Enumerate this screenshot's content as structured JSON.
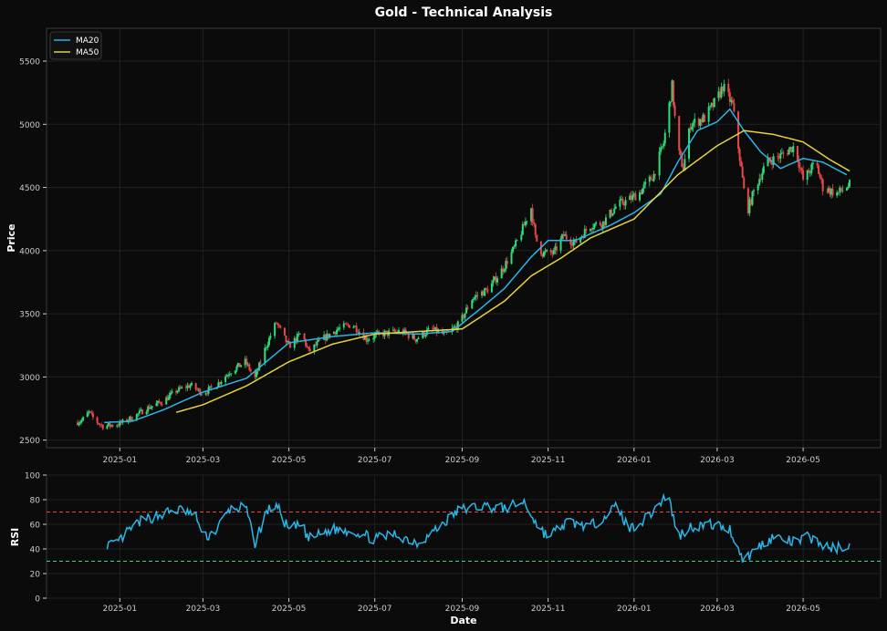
{
  "chart_data": [
    {
      "type": "candlestick",
      "title": "Gold - Technical Analysis",
      "xlabel": "",
      "ylabel": "Price",
      "ylim": [
        2440,
        5760
      ],
      "xlim": [
        "2024-11-10",
        "2026-06-25"
      ],
      "y_ticks": [
        2500,
        3000,
        3500,
        4000,
        4500,
        5000,
        5500
      ],
      "x_ticks": [
        "2025-01",
        "2025-03",
        "2025-05",
        "2025-07",
        "2025-09",
        "2025-11",
        "2026-01",
        "2026-03",
        "2026-05"
      ],
      "grid": true,
      "legend": {
        "position": "top-left",
        "entries": [
          {
            "name": "MA20",
            "color": "#29b6e8"
          },
          {
            "name": "MA50",
            "color": "#e6d33c"
          }
        ]
      },
      "candle_colors": {
        "up": "#2fdc7a",
        "down": "#e84848"
      },
      "price_path": [
        [
          "2024-12-01",
          2640
        ],
        [
          "2024-12-05",
          2655
        ],
        [
          "2024-12-10",
          2720
        ],
        [
          "2024-12-15",
          2650
        ],
        [
          "2024-12-20",
          2610
        ],
        [
          "2024-12-31",
          2625
        ],
        [
          "2025-01-10",
          2680
        ],
        [
          "2025-01-20",
          2750
        ],
        [
          "2025-02-01",
          2810
        ],
        [
          "2025-02-10",
          2890
        ],
        [
          "2025-02-20",
          2935
        ],
        [
          "2025-03-01",
          2870
        ],
        [
          "2025-03-10",
          2930
        ],
        [
          "2025-03-20",
          3040
        ],
        [
          "2025-03-31",
          3120
        ],
        [
          "2025-04-07",
          2990
        ],
        [
          "2025-04-15",
          3250
        ],
        [
          "2025-04-22",
          3430
        ],
        [
          "2025-05-01",
          3240
        ],
        [
          "2025-05-10",
          3350
        ],
        [
          "2025-05-15",
          3200
        ],
        [
          "2025-05-25",
          3300
        ],
        [
          "2025-06-05",
          3380
        ],
        [
          "2025-06-15",
          3420
        ],
        [
          "2025-06-25",
          3300
        ],
        [
          "2025-07-05",
          3340
        ],
        [
          "2025-07-20",
          3360
        ],
        [
          "2025-07-30",
          3300
        ],
        [
          "2025-08-10",
          3380
        ],
        [
          "2025-08-20",
          3330
        ],
        [
          "2025-08-30",
          3420
        ],
        [
          "2025-09-08",
          3620
        ],
        [
          "2025-09-20",
          3700
        ],
        [
          "2025-09-30",
          3860
        ],
        [
          "2025-10-08",
          4020
        ],
        [
          "2025-10-15",
          4200
        ],
        [
          "2025-10-20",
          4340
        ],
        [
          "2025-10-23",
          4100
        ],
        [
          "2025-10-28",
          3980
        ],
        [
          "2025-11-05",
          3980
        ],
        [
          "2025-11-12",
          4120
        ],
        [
          "2025-11-20",
          4060
        ],
        [
          "2025-12-01",
          4200
        ],
        [
          "2025-12-10",
          4220
        ],
        [
          "2025-12-20",
          4360
        ],
        [
          "2025-12-28",
          4400
        ],
        [
          "2026-01-05",
          4460
        ],
        [
          "2026-01-15",
          4600
        ],
        [
          "2026-01-22",
          4850
        ],
        [
          "2026-01-28",
          5300
        ],
        [
          "2026-02-01",
          4800
        ],
        [
          "2026-02-05",
          4650
        ],
        [
          "2026-02-10",
          5000
        ],
        [
          "2026-02-20",
          5050
        ],
        [
          "2026-03-01",
          5200
        ],
        [
          "2026-03-05",
          5300
        ],
        [
          "2026-03-12",
          5150
        ],
        [
          "2026-03-18",
          4650
        ],
        [
          "2026-03-22",
          4300
        ],
        [
          "2026-03-28",
          4500
        ],
        [
          "2026-04-05",
          4700
        ],
        [
          "2026-04-15",
          4750
        ],
        [
          "2026-04-25",
          4830
        ],
        [
          "2026-05-01",
          4560
        ],
        [
          "2026-05-10",
          4700
        ],
        [
          "2026-05-15",
          4500
        ],
        [
          "2026-05-25",
          4450
        ],
        [
          "2026-06-03",
          4520
        ]
      ],
      "ma20_path": [
        [
          "2024-12-21",
          2640
        ],
        [
          "2025-01-10",
          2650
        ],
        [
          "2025-02-01",
          2740
        ],
        [
          "2025-03-01",
          2880
        ],
        [
          "2025-04-01",
          2990
        ],
        [
          "2025-05-01",
          3270
        ],
        [
          "2025-06-01",
          3320
        ],
        [
          "2025-07-01",
          3350
        ],
        [
          "2025-08-01",
          3340
        ],
        [
          "2025-08-25",
          3360
        ],
        [
          "2025-09-15",
          3550
        ],
        [
          "2025-10-01",
          3700
        ],
        [
          "2025-10-20",
          3950
        ],
        [
          "2025-11-01",
          4080
        ],
        [
          "2025-11-20",
          4080
        ],
        [
          "2025-12-15",
          4200
        ],
        [
          "2026-01-01",
          4300
        ],
        [
          "2026-01-20",
          4450
        ],
        [
          "2026-02-01",
          4700
        ],
        [
          "2026-02-15",
          4950
        ],
        [
          "2026-03-01",
          5020
        ],
        [
          "2026-03-10",
          5120
        ],
        [
          "2026-03-20",
          4950
        ],
        [
          "2026-04-01",
          4780
        ],
        [
          "2026-04-15",
          4650
        ],
        [
          "2026-05-01",
          4730
        ],
        [
          "2026-05-15",
          4700
        ],
        [
          "2026-06-01",
          4600
        ]
      ],
      "ma50_path": [
        [
          "2025-02-10",
          2720
        ],
        [
          "2025-03-01",
          2780
        ],
        [
          "2025-04-01",
          2930
        ],
        [
          "2025-05-01",
          3120
        ],
        [
          "2025-06-01",
          3260
        ],
        [
          "2025-07-01",
          3340
        ],
        [
          "2025-08-01",
          3360
        ],
        [
          "2025-09-01",
          3380
        ],
        [
          "2025-10-01",
          3600
        ],
        [
          "2025-10-20",
          3800
        ],
        [
          "2025-11-10",
          3940
        ],
        [
          "2025-12-01",
          4100
        ],
        [
          "2026-01-01",
          4250
        ],
        [
          "2026-02-01",
          4600
        ],
        [
          "2026-03-01",
          4830
        ],
        [
          "2026-03-20",
          4950
        ],
        [
          "2026-04-10",
          4920
        ],
        [
          "2026-05-01",
          4860
        ],
        [
          "2026-05-20",
          4720
        ],
        [
          "2026-06-03",
          4630
        ]
      ]
    },
    {
      "type": "line",
      "title": "",
      "xlabel": "Date",
      "ylabel": "RSI",
      "ylim": [
        0,
        100
      ],
      "y_ticks": [
        0,
        20,
        40,
        60,
        80,
        100
      ],
      "x_ticks": [
        "2025-01",
        "2025-03",
        "2025-05",
        "2025-07",
        "2025-09",
        "2025-11",
        "2026-01",
        "2026-03",
        "2026-05"
      ],
      "grid": true,
      "reference_lines": [
        {
          "value": 70,
          "color": "#e84848",
          "style": "dashed"
        },
        {
          "value": 30,
          "color": "#2fdc7a",
          "style": "dashed"
        }
      ],
      "series": [
        {
          "color": "#29b6e8",
          "points": [
            [
              "2024-12-21",
              45
            ],
            [
              "2024-12-28",
              42
            ],
            [
              "2025-01-05",
              52
            ],
            [
              "2025-01-15",
              62
            ],
            [
              "2025-01-25",
              66
            ],
            [
              "2025-02-05",
              70
            ],
            [
              "2025-02-15",
              72
            ],
            [
              "2025-02-25",
              65
            ],
            [
              "2025-03-01",
              48
            ],
            [
              "2025-03-10",
              55
            ],
            [
              "2025-03-20",
              72
            ],
            [
              "2025-03-31",
              74
            ],
            [
              "2025-04-07",
              45
            ],
            [
              "2025-04-15",
              70
            ],
            [
              "2025-04-22",
              76
            ],
            [
              "2025-05-01",
              55
            ],
            [
              "2025-05-10",
              60
            ],
            [
              "2025-05-15",
              48
            ],
            [
              "2025-06-01",
              56
            ],
            [
              "2025-06-15",
              55
            ],
            [
              "2025-07-01",
              48
            ],
            [
              "2025-07-15",
              52
            ],
            [
              "2025-08-01",
              45
            ],
            [
              "2025-08-15",
              57
            ],
            [
              "2025-08-30",
              72
            ],
            [
              "2025-09-15",
              75
            ],
            [
              "2025-10-01",
              73
            ],
            [
              "2025-10-15",
              78
            ],
            [
              "2025-10-25",
              58
            ],
            [
              "2025-11-01",
              50
            ],
            [
              "2025-11-15",
              62
            ],
            [
              "2025-12-01",
              58
            ],
            [
              "2025-12-20",
              75
            ],
            [
              "2025-12-28",
              56
            ],
            [
              "2026-01-10",
              65
            ],
            [
              "2026-01-25",
              85
            ],
            [
              "2026-02-01",
              50
            ],
            [
              "2026-02-10",
              58
            ],
            [
              "2026-02-25",
              60
            ],
            [
              "2026-03-10",
              56
            ],
            [
              "2026-03-20",
              30
            ],
            [
              "2026-03-28",
              40
            ],
            [
              "2026-04-10",
              50
            ],
            [
              "2026-04-25",
              45
            ],
            [
              "2026-05-05",
              50
            ],
            [
              "2026-05-20",
              40
            ],
            [
              "2026-06-03",
              43
            ]
          ]
        }
      ]
    }
  ]
}
